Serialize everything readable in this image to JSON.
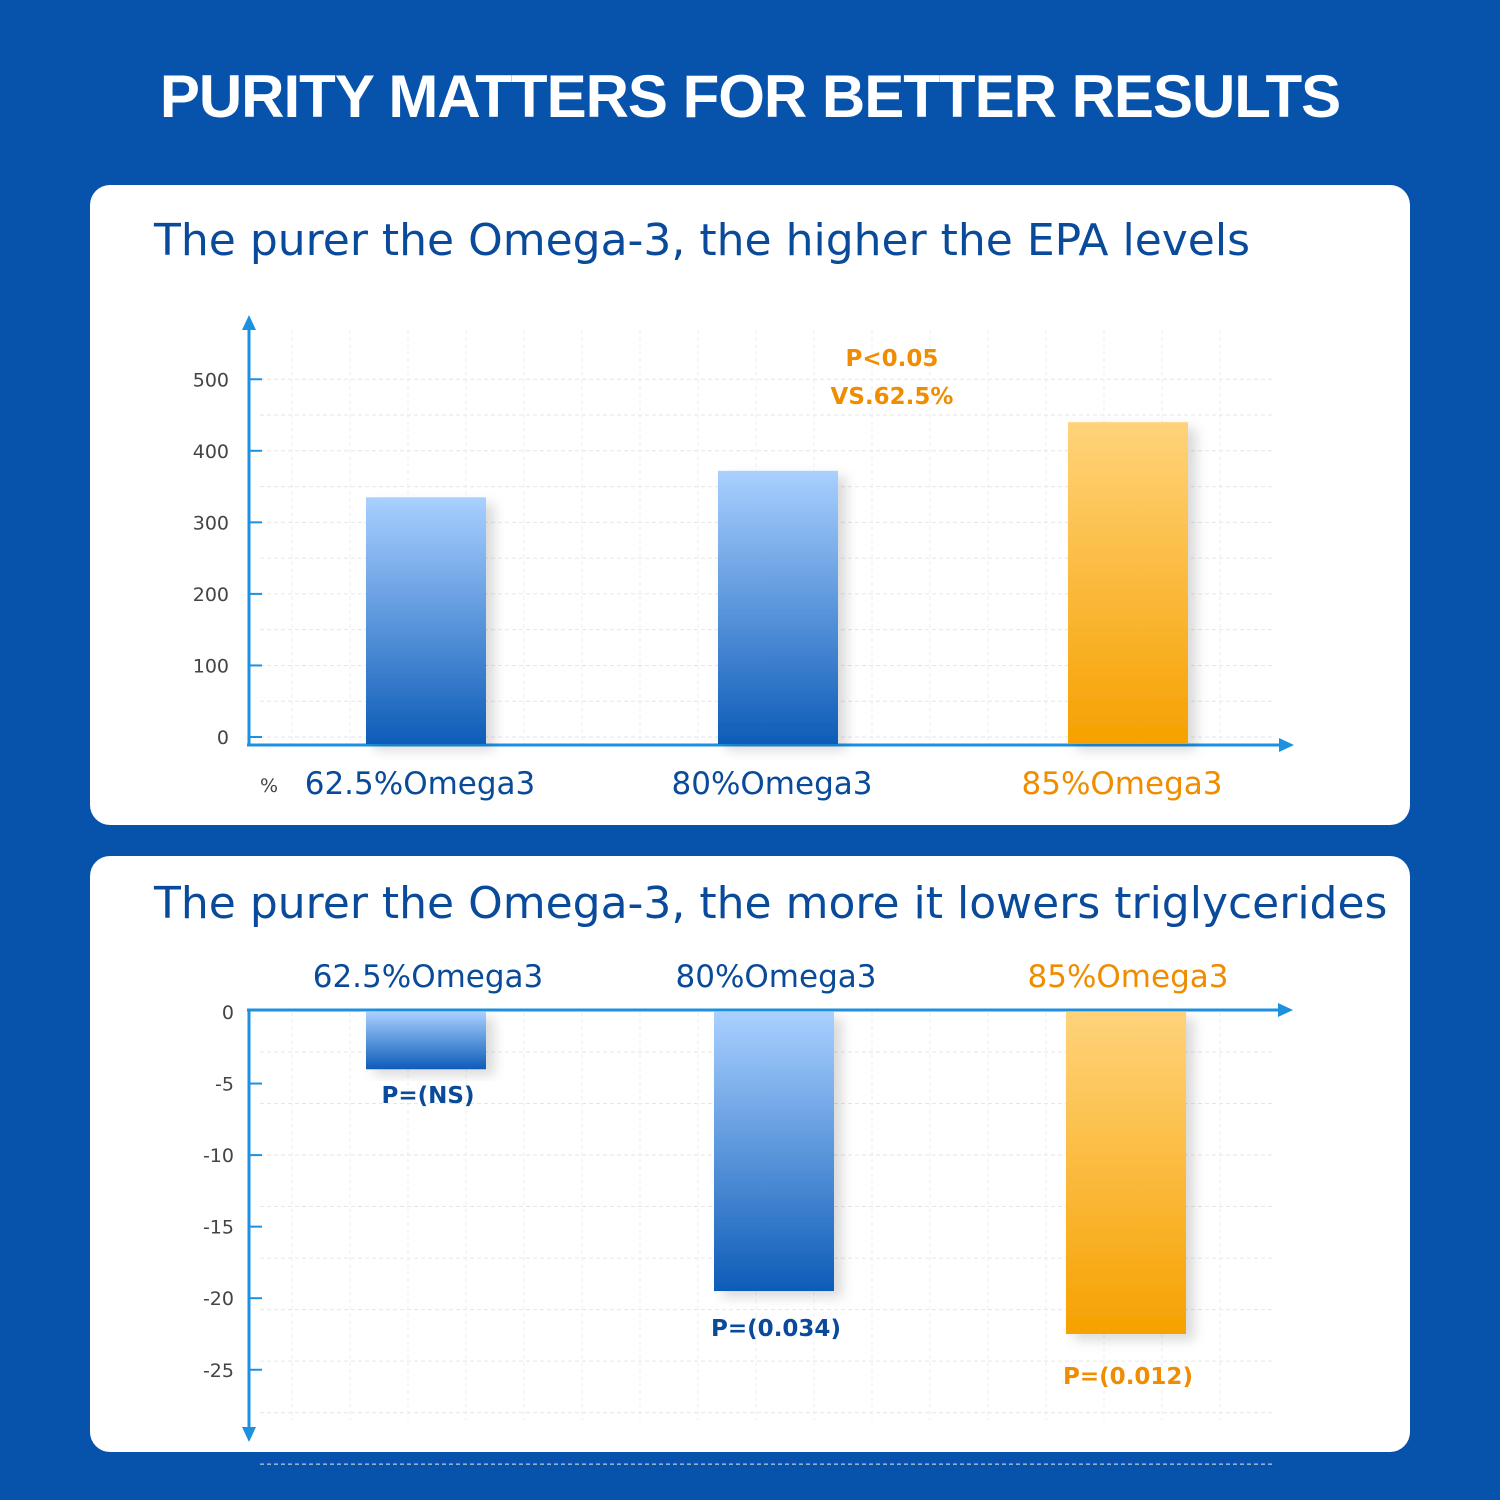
{
  "title": "PURITY MATTERS FOR BETTER RESULTS",
  "colors": {
    "background": "#0753ab",
    "title_text": "#0a4a9a",
    "blue_bar_top": "#a9d0ff",
    "blue_bar_bottom": "#0d5cb8",
    "orange_bar_top": "#ffd37a",
    "orange_bar_bottom": "#f6a100",
    "axis": "#1e90e0",
    "orange_text": "#f08c00"
  },
  "chart_data": [
    {
      "type": "bar",
      "title": "The purer the Omega-3, the higher the EPA levels",
      "unit_label": "%",
      "categories": [
        "62.5%Omega3",
        "80%Omega3",
        "85%Omega3"
      ],
      "values": [
        335,
        372,
        440
      ],
      "yticks": [
        "0",
        "100",
        "200",
        "300",
        "400",
        "500"
      ],
      "ylim": [
        0,
        560
      ],
      "grid": true,
      "annotations": [
        {
          "category": "85%Omega3",
          "lines": [
            "P<0.05",
            "VS.62.5%"
          ]
        }
      ]
    },
    {
      "type": "bar",
      "title": "The purer the Omega-3, the more it lowers triglycerides",
      "categories": [
        "62.5%Omega3",
        "80%Omega3",
        "85%Omega3"
      ],
      "values": [
        -4,
        -19.5,
        -22.5
      ],
      "yticks": [
        "0",
        "-5",
        "-10",
        "-15",
        "-20",
        "-25"
      ],
      "ylim": [
        -29,
        0
      ],
      "grid": true,
      "labels": [
        "P=(NS)",
        "P=(0.034)",
        "P=(0.012)"
      ]
    }
  ]
}
